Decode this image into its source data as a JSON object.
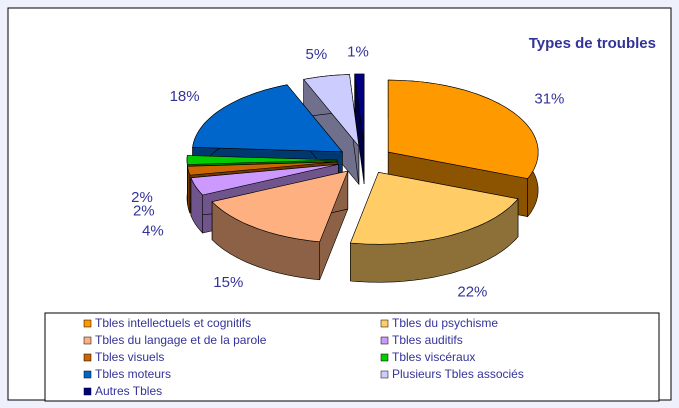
{
  "chart_data": {
    "type": "pie",
    "title": "Types de troubles",
    "categories": [
      "Tbles intellectuels et cognitifs",
      "Tbles du psychisme",
      "Tbles du langage et de la parole",
      "Tbles auditifs",
      "Tbles visuels",
      "Tbles viscéraux",
      "Tbles moteurs",
      "Plusieurs Tbles associés",
      "Autres Tbles"
    ],
    "values": [
      31,
      22,
      15,
      4,
      2,
      2,
      18,
      5,
      1
    ],
    "value_labels": [
      "31%",
      "22%",
      "15%",
      "4%",
      "2%",
      "2%",
      "18%",
      "5%",
      "1%"
    ],
    "colors": [
      "#ff9900",
      "#ffcc66",
      "#ffb080",
      "#cc99ff",
      "#cc6600",
      "#00cc00",
      "#0066cc",
      "#ccccff",
      "#000080"
    ]
  }
}
